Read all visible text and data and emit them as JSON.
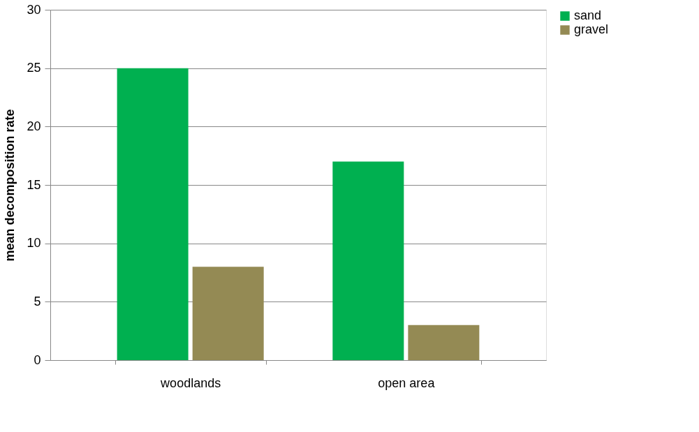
{
  "chart_data": {
    "type": "bar",
    "ylabel": "mean decomposition rate",
    "categories": [
      "woodlands",
      "open area"
    ],
    "series": [
      {
        "name": "sand",
        "color": "#00b050",
        "values": [
          25,
          17
        ]
      },
      {
        "name": "gravel",
        "color": "#948a54",
        "values": [
          8,
          3
        ]
      }
    ],
    "ylim": [
      0,
      30
    ],
    "yticks": [
      0,
      5,
      10,
      15,
      20,
      25,
      30
    ],
    "grid": "y",
    "legend": "right"
  }
}
